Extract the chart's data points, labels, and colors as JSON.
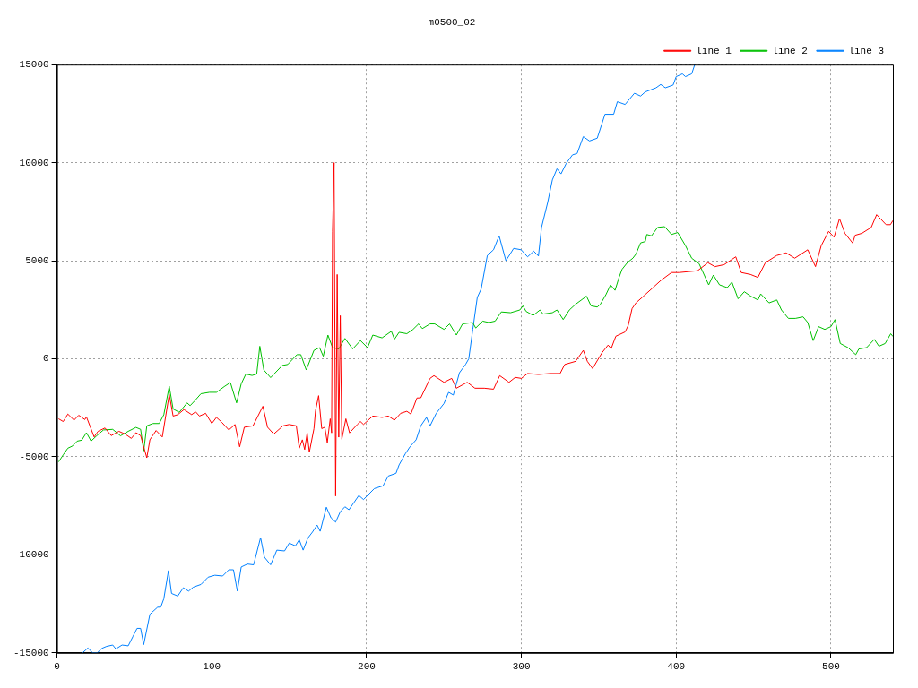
{
  "chart_data": {
    "type": "line",
    "title": "m0500_02",
    "xlim": [
      0,
      540
    ],
    "xticks": [
      0,
      100,
      200,
      300,
      400,
      500
    ],
    "ylim": [
      -15000,
      15000
    ],
    "yticks": [
      -15000,
      -10000,
      -5000,
      0,
      5000,
      10000,
      15000
    ],
    "grid": true,
    "legend": "top right",
    "marker": "none",
    "line_style": "solid",
    "series": [
      {
        "name": "line 1",
        "color": "#ff0000",
        "x": [
          1,
          4,
          7,
          11,
          14,
          18,
          19,
          24,
          26.5,
          31,
          35,
          40,
          44,
          48,
          51,
          54,
          58,
          60,
          64,
          68,
          72.5,
          75,
          78,
          82,
          87,
          89.5,
          92,
          96,
          100,
          103,
          106.6,
          111,
          115,
          118,
          121,
          126.6,
          133,
          136,
          140,
          146,
          150,
          154.6,
          156.5,
          158.5,
          160,
          161.6,
          163,
          166,
          167,
          169,
          171,
          173,
          174.6,
          176.5,
          177.4,
          178,
          179,
          180,
          181,
          182,
          183,
          184,
          186.6,
          189,
          194,
          196,
          198,
          204,
          210,
          214,
          218,
          222,
          226,
          228.6,
          232.5,
          235,
          241,
          243.5,
          250,
          255,
          258,
          265,
          270,
          276,
          282,
          286,
          292,
          296,
          300,
          304,
          311,
          318.6,
          325,
          328,
          335,
          340,
          342.6,
          346,
          352,
          356,
          358,
          361,
          367,
          369,
          371.5,
          374,
          378,
          385,
          390,
          397,
          402,
          413.8,
          420.5,
          425,
          431,
          438.5,
          442,
          448,
          452.8,
          457.6,
          465,
          471,
          476.6,
          485,
          490,
          493.7,
          498.5,
          502,
          505.5,
          509,
          514,
          515.6,
          520,
          526,
          529.5,
          535.6,
          538.4,
          540
        ],
        "values": [
          -3060,
          -3200,
          -2820,
          -3130,
          -2880,
          -3100,
          -2960,
          -3990,
          -3700,
          -3530,
          -3920,
          -3700,
          -3840,
          -4060,
          -3770,
          -3920,
          -5050,
          -4130,
          -3660,
          -3990,
          -1820,
          -2920,
          -2850,
          -2590,
          -2850,
          -2700,
          -2920,
          -2780,
          -3300,
          -2990,
          -3250,
          -3630,
          -3350,
          -4490,
          -3490,
          -3420,
          -2420,
          -3490,
          -3840,
          -3420,
          -3350,
          -3420,
          -4560,
          -4130,
          -4630,
          -3780,
          -4770,
          -3560,
          -2640,
          -1880,
          -3560,
          -3490,
          -4270,
          -3060,
          -3780,
          6500,
          10000,
          -7000,
          4300,
          -4000,
          2200,
          -4100,
          -3060,
          -3780,
          -3350,
          -3200,
          -3350,
          -2920,
          -2990,
          -2920,
          -3130,
          -2780,
          -2680,
          -2820,
          -2000,
          -1990,
          -1000,
          -860,
          -1200,
          -1000,
          -1500,
          -1200,
          -1500,
          -1500,
          -1550,
          -860,
          -1200,
          -950,
          -1000,
          -750,
          -800,
          -750,
          -750,
          -290,
          -130,
          430,
          -130,
          -500,
          300,
          700,
          520,
          1150,
          1370,
          1700,
          2560,
          2850,
          3130,
          3630,
          3990,
          4400,
          4400,
          4490,
          4900,
          4700,
          4800,
          5200,
          4400,
          4300,
          4150,
          4900,
          5270,
          5400,
          5130,
          5560,
          4700,
          5770,
          6500,
          6200,
          7150,
          6400,
          5900,
          6300,
          6400,
          6700,
          7350,
          6840,
          6840,
          7050
        ]
      },
      {
        "name": "line 2",
        "color": "#00c000",
        "x": [
          1,
          4,
          7,
          10,
          13,
          16,
          19,
          22,
          25.6,
          30,
          36,
          41,
          46,
          51,
          54,
          56,
          58,
          62,
          66,
          69,
          72.5,
          75,
          79,
          84,
          86,
          89,
          93,
          98.5,
          103,
          108,
          112,
          116,
          119,
          122,
          126,
          129,
          131,
          133.6,
          138,
          145.5,
          149,
          155,
          157.5,
          161,
          166,
          169.6,
          172,
          175,
          178,
          182,
          186,
          191,
          196,
          200.6,
          204,
          210,
          216,
          218,
          221,
          226,
          230,
          233.6,
          236,
          241,
          244,
          250,
          253.6,
          258,
          262,
          268.5,
          270.5,
          275,
          279,
          283,
          287,
          293,
          299,
          301,
          303,
          307.6,
          312,
          314,
          320,
          323,
          327,
          331,
          335,
          341,
          342,
          345,
          349,
          351,
          354.6,
          357.6,
          360.5,
          363,
          365,
          368.5,
          372,
          374,
          377,
          380,
          381,
          384,
          388,
          392.5,
          397,
          401,
          406,
          410,
          414.8,
          421,
          424,
          428,
          433,
          436,
          440,
          444,
          448,
          452.8,
          454.6,
          460,
          465,
          468,
          472.5,
          477,
          482,
          485,
          488.5,
          492,
          496,
          500,
          502.6,
          506,
          511,
          516,
          518,
          523,
          528,
          531,
          535,
          538.6,
          540
        ],
        "values": [
          -5260,
          -4900,
          -4560,
          -4450,
          -4200,
          -4150,
          -3770,
          -4200,
          -3930,
          -3630,
          -3600,
          -3930,
          -3700,
          -3500,
          -3600,
          -4700,
          -3420,
          -3300,
          -3300,
          -2850,
          -1400,
          -2560,
          -2730,
          -2250,
          -2390,
          -2140,
          -1780,
          -1710,
          -1710,
          -1420,
          -1210,
          -2250,
          -1280,
          -780,
          -850,
          -780,
          640,
          -570,
          -960,
          -340,
          -290,
          210,
          210,
          -570,
          430,
          570,
          130,
          1210,
          570,
          500,
          1040,
          500,
          930,
          570,
          1210,
          1070,
          1400,
          1000,
          1350,
          1280,
          1500,
          1780,
          1540,
          1780,
          1780,
          1500,
          1780,
          1210,
          1780,
          1850,
          1570,
          1920,
          1850,
          1920,
          2390,
          2350,
          2490,
          2700,
          2420,
          2210,
          2490,
          2280,
          2350,
          2490,
          2000,
          2490,
          2780,
          3130,
          3200,
          2700,
          2640,
          2780,
          3270,
          3770,
          3490,
          4130,
          4560,
          4910,
          5130,
          5340,
          5910,
          5980,
          6340,
          6270,
          6700,
          6740,
          6340,
          6440,
          5770,
          5130,
          4850,
          3770,
          4270,
          3770,
          3630,
          3910,
          3060,
          3420,
          3200,
          3000,
          3310,
          2850,
          3000,
          2490,
          2060,
          2060,
          2140,
          1850,
          925,
          1640,
          1500,
          1640,
          2000,
          780,
          570,
          210,
          500,
          570,
          990,
          640,
          780,
          1280,
          1140
        ]
      },
      {
        "name": "line 3",
        "color": "#0080ff",
        "x": [
          16.5,
          20,
          23,
          26,
          29,
          32,
          36,
          38,
          42,
          46,
          49,
          51.7,
          54,
          56,
          60,
          65,
          67,
          69,
          72,
          74,
          78,
          81.6,
          85,
          88,
          93,
          97.6,
          102,
          107,
          111,
          114,
          116.5,
          119,
          123,
          127,
          131.5,
          134,
          138,
          142,
          147,
          150,
          154,
          156.5,
          159,
          162,
          165,
          168,
          170,
          174,
          177,
          180,
          183,
          186,
          188.6,
          195,
          198,
          205,
          210.6,
          214,
          219,
          221,
          225,
          228,
          232,
          235,
          238.7,
          241,
          245,
          250,
          253,
          256,
          260,
          264,
          266,
          268.6,
          271.5,
          274,
          278,
          282,
          285.6,
          290,
          295,
          299.8,
          304,
          308,
          311,
          313,
          317,
          320,
          323,
          325.6,
          329,
          333,
          336,
          340,
          344,
          349,
          354,
          359.6,
          362,
          367,
          373,
          377,
          380,
          387,
          390,
          393,
          398,
          400,
          404,
          406,
          410,
          412
        ],
        "values": [
          -15000,
          -14750,
          -15000,
          -15000,
          -14770,
          -14670,
          -14600,
          -14800,
          -14600,
          -14640,
          -14170,
          -13750,
          -13750,
          -14580,
          -13030,
          -12670,
          -12670,
          -12240,
          -10800,
          -11970,
          -12100,
          -11680,
          -11850,
          -11650,
          -11510,
          -11140,
          -11040,
          -11080,
          -10760,
          -10760,
          -11850,
          -10620,
          -10470,
          -10510,
          -9120,
          -10120,
          -10510,
          -9760,
          -9800,
          -9400,
          -9540,
          -9230,
          -9760,
          -9150,
          -8840,
          -8480,
          -8800,
          -7570,
          -8110,
          -8330,
          -7800,
          -7550,
          -7700,
          -6970,
          -7180,
          -6620,
          -6480,
          -5980,
          -5840,
          -5410,
          -4850,
          -4490,
          -4130,
          -3420,
          -2990,
          -3420,
          -2780,
          -2280,
          -1710,
          -1850,
          -710,
          -280,
          0,
          1500,
          3130,
          3560,
          5270,
          5560,
          6270,
          5000,
          5630,
          5560,
          5200,
          5490,
          5240,
          6700,
          7980,
          9120,
          9690,
          9430,
          9970,
          10400,
          10470,
          11330,
          11110,
          11250,
          12470,
          12470,
          13110,
          12970,
          13540,
          13400,
          13610,
          13820,
          13990,
          13820,
          13960,
          14390,
          14530,
          14390,
          14530,
          15000
        ]
      }
    ]
  }
}
